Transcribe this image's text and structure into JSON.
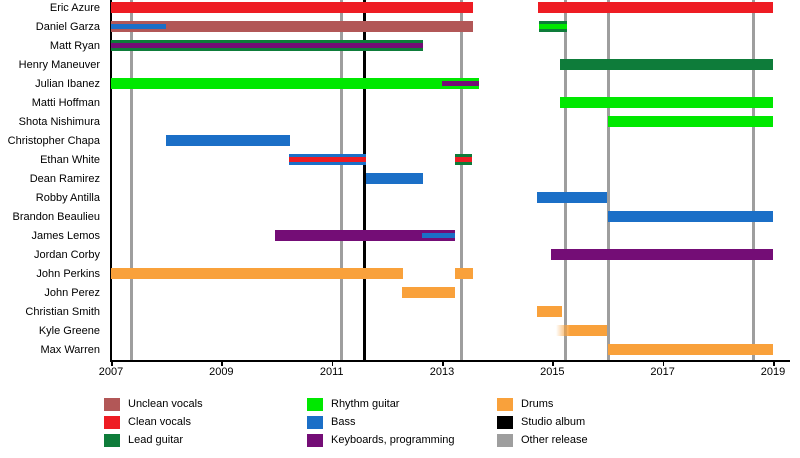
{
  "chart_data": {
    "type": "bar",
    "variant": "member-timeline-gantt",
    "title": "",
    "xlabel": "",
    "ylabel": "",
    "x_axis": {
      "min": 2007,
      "max": 2019,
      "ticks": [
        2007,
        2009,
        2011,
        2013,
        2015,
        2017,
        2019
      ]
    },
    "grid": "vertical-release-markers",
    "legend_position": "bottom",
    "colors": {
      "unclean_vocals": "#b25757",
      "clean_vocals": "#ee1c23",
      "lead_guitar": "#0e7c3a",
      "rhythm_guitar": "#00e800",
      "bass": "#1b6fc7",
      "keyboards": "#740d76",
      "drums": "#f9a13b",
      "studio_album": "#000000",
      "other_release": "#9e9e9e"
    },
    "markers": [
      {
        "kind": "other_release",
        "year": 2007.38
      },
      {
        "kind": "other_release",
        "year": 2011.18
      },
      {
        "kind": "studio_album",
        "year": 2011.6
      },
      {
        "kind": "other_release",
        "year": 2013.35
      },
      {
        "kind": "other_release",
        "year": 2015.23
      },
      {
        "kind": "other_release",
        "year": 2016.02
      },
      {
        "kind": "other_release",
        "year": 2018.64
      }
    ],
    "members": [
      {
        "name": "Eric Azure",
        "segments": [
          {
            "start": 2007.0,
            "end": 2013.57,
            "role": "clean_vocals"
          },
          {
            "start": 2014.74,
            "end": 2019.0,
            "role": "clean_vocals"
          }
        ]
      },
      {
        "name": "Daniel Garza",
        "segments": [
          {
            "start": 2007.0,
            "end": 2013.57,
            "role": "unclean_vocals",
            "overlays": [
              {
                "role": "bass",
                "start": 2007.0,
                "end": 2008.0
              }
            ]
          },
          {
            "start": 2014.76,
            "end": 2015.26,
            "role": "lead_guitar",
            "overlays": [
              {
                "role": "rhythm_guitar",
                "start": 2014.76,
                "end": 2015.26
              }
            ]
          }
        ]
      },
      {
        "name": "Matt Ryan",
        "segments": [
          {
            "start": 2007.0,
            "end": 2012.66,
            "role": "lead_guitar",
            "overlays": [
              {
                "role": "keyboards",
                "start": 2007.0,
                "end": 2012.66
              }
            ]
          }
        ]
      },
      {
        "name": "Henry Maneuver",
        "segments": [
          {
            "start": 2015.13,
            "end": 2019.0,
            "role": "lead_guitar"
          }
        ]
      },
      {
        "name": "Julian Ibanez",
        "segments": [
          {
            "start": 2007.0,
            "end": 2013.67,
            "role": "rhythm_guitar",
            "overlays": [
              {
                "role": "keyboards",
                "start": 2013.0,
                "end": 2013.67
              }
            ]
          }
        ]
      },
      {
        "name": "Matti Hoffman",
        "segments": [
          {
            "start": 2015.13,
            "end": 2019.0,
            "role": "rhythm_guitar"
          }
        ]
      },
      {
        "name": "Shota Nishimura",
        "segments": [
          {
            "start": 2016.0,
            "end": 2019.0,
            "role": "rhythm_guitar"
          }
        ]
      },
      {
        "name": "Christopher Chapa",
        "segments": [
          {
            "start": 2008.0,
            "end": 2010.25,
            "role": "bass"
          }
        ]
      },
      {
        "name": "Ethan White",
        "segments": [
          {
            "start": 2010.23,
            "end": 2011.62,
            "role": "bass",
            "overlays": [
              {
                "role": "clean_vocals",
                "start": 2010.23,
                "end": 2011.62
              }
            ]
          },
          {
            "start": 2013.23,
            "end": 2013.55,
            "role": "lead_guitar",
            "overlays": [
              {
                "role": "clean_vocals",
                "start": 2013.23,
                "end": 2013.55
              }
            ]
          }
        ]
      },
      {
        "name": "Dean Ramirez",
        "segments": [
          {
            "start": 2011.62,
            "end": 2012.66,
            "role": "bass"
          }
        ]
      },
      {
        "name": "Robby Antilla",
        "segments": [
          {
            "start": 2014.72,
            "end": 2016.0,
            "role": "bass"
          }
        ]
      },
      {
        "name": "Brandon Beaulieu",
        "segments": [
          {
            "start": 2016.0,
            "end": 2019.0,
            "role": "bass"
          }
        ]
      },
      {
        "name": "James Lemos",
        "segments": [
          {
            "start": 2009.97,
            "end": 2013.24,
            "role": "keyboards",
            "overlays": [
              {
                "role": "bass",
                "start": 2012.64,
                "end": 2013.24
              }
            ]
          }
        ]
      },
      {
        "name": "Jordan Corby",
        "segments": [
          {
            "start": 2014.98,
            "end": 2019.0,
            "role": "keyboards"
          }
        ]
      },
      {
        "name": "John Perkins",
        "segments": [
          {
            "start": 2007.0,
            "end": 2012.3,
            "role": "drums"
          },
          {
            "start": 2013.23,
            "end": 2013.56,
            "role": "drums"
          }
        ]
      },
      {
        "name": "John Perez",
        "segments": [
          {
            "start": 2012.27,
            "end": 2013.24,
            "role": "drums"
          }
        ]
      },
      {
        "name": "Christian Smith",
        "segments": [
          {
            "start": 2014.72,
            "end": 2015.17,
            "role": "drums"
          }
        ]
      },
      {
        "name": "Kyle Greene",
        "segments": [
          {
            "start": 2015.07,
            "end": 2016.0,
            "role": "drums",
            "fade_left": true
          }
        ]
      },
      {
        "name": "Max Warren",
        "segments": [
          {
            "start": 2016.0,
            "end": 2019.0,
            "role": "drums"
          }
        ]
      }
    ],
    "legend": {
      "columns": [
        {
          "items": [
            {
              "label": "Unclean vocals",
              "role": "unclean_vocals"
            },
            {
              "label": "Clean vocals",
              "role": "clean_vocals"
            },
            {
              "label": "Lead guitar",
              "role": "lead_guitar"
            }
          ]
        },
        {
          "items": [
            {
              "label": "Rhythm guitar",
              "role": "rhythm_guitar"
            },
            {
              "label": "Bass",
              "role": "bass"
            },
            {
              "label": "Keyboards, programming",
              "role": "keyboards"
            }
          ]
        },
        {
          "items": [
            {
              "label": "Drums",
              "role": "drums"
            },
            {
              "label": "Studio album",
              "role": "studio_album"
            },
            {
              "label": "Other release",
              "role": "other_release"
            }
          ]
        }
      ]
    }
  }
}
